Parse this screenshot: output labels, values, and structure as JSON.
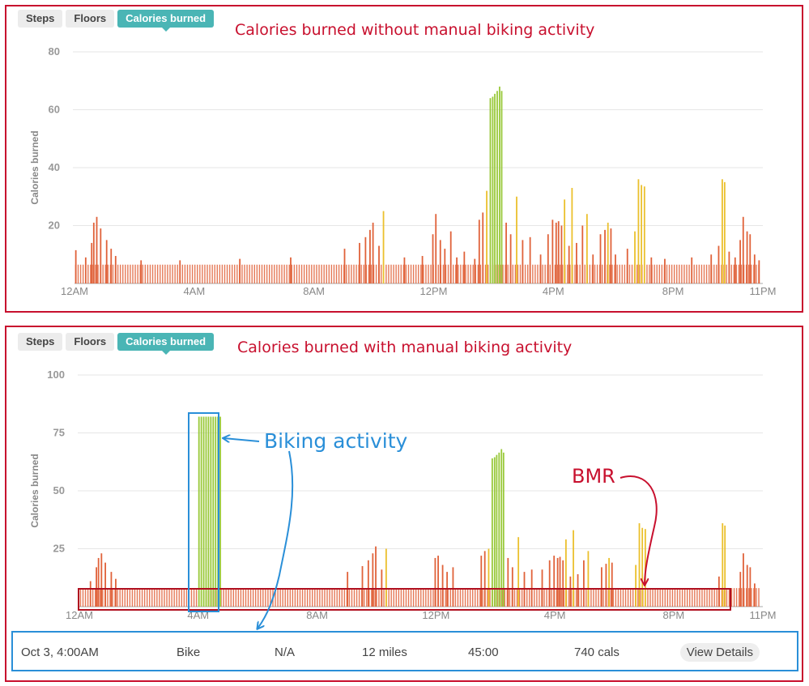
{
  "tabs": {
    "steps": "Steps",
    "floors": "Floors",
    "calories": "Calories burned"
  },
  "top": {
    "title": "Calories burned without manual biking activity"
  },
  "bottom": {
    "title": "Calories burned with manual biking activity"
  },
  "annotations": {
    "biking": "Biking activity",
    "bmr": "BMR"
  },
  "activity": {
    "date": "Oct 3, 4:00AM",
    "type": "Bike",
    "pace": "N/A",
    "distance": "12 miles",
    "duration": "45:00",
    "calories": "740 cals",
    "view_details": "View Details"
  },
  "colors": {
    "bar_orange": "#e0623a",
    "bar_yellow": "#ebc02d",
    "bar_green": "#99c93a",
    "accent": "#4ab5b5",
    "annotation_red": "#c8102e",
    "annotation_blue": "#2a8fd8"
  },
  "chart_data": [
    {
      "type": "bar",
      "title": "Calories burned without manual biking activity",
      "ylabel": "Calories burned",
      "ylim": [
        0,
        80
      ],
      "yticks": [
        20,
        40,
        60,
        80
      ],
      "xlim": [
        0,
        23
      ],
      "xticks": [
        {
          "h": 0,
          "label": "12AM"
        },
        {
          "h": 4,
          "label": "4AM"
        },
        {
          "h": 8,
          "label": "8AM"
        },
        {
          "h": 12,
          "label": "12PM"
        },
        {
          "h": 16,
          "label": "4PM"
        },
        {
          "h": 20,
          "label": "8PM"
        },
        {
          "h": 23,
          "label": "11PM"
        }
      ],
      "bmr": 6.5,
      "series": [
        {
          "name": "active",
          "points": [
            [
              0.02,
              11.5
            ],
            [
              0.35,
              9
            ],
            [
              0.55,
              14
            ],
            [
              0.62,
              21
            ],
            [
              0.72,
              23
            ],
            [
              0.85,
              19
            ],
            [
              1.05,
              15
            ],
            [
              1.2,
              12
            ],
            [
              1.35,
              9.5
            ],
            [
              2.2,
              8
            ],
            [
              3.5,
              8
            ],
            [
              5.5,
              8.5
            ],
            [
              7.2,
              9
            ],
            [
              9.0,
              12
            ],
            [
              9.5,
              14
            ],
            [
              9.7,
              16
            ],
            [
              9.85,
              18.5
            ],
            [
              9.95,
              21
            ],
            [
              10.15,
              13
            ],
            [
              10.3,
              25,
              "y"
            ],
            [
              11.0,
              9
            ],
            [
              11.6,
              9.5
            ],
            [
              11.95,
              17
            ],
            [
              12.05,
              24
            ],
            [
              12.2,
              15
            ],
            [
              12.35,
              12
            ],
            [
              12.55,
              18
            ],
            [
              12.75,
              9
            ],
            [
              13.0,
              11
            ],
            [
              13.35,
              8.5
            ],
            [
              13.5,
              22
            ],
            [
              13.62,
              24.5
            ],
            [
              13.75,
              32,
              "y"
            ],
            [
              13.87,
              64,
              "g"
            ],
            [
              13.95,
              64.5,
              "g"
            ],
            [
              14.02,
              65.5,
              "g"
            ],
            [
              14.1,
              66.5,
              "g"
            ],
            [
              14.18,
              68,
              "g"
            ],
            [
              14.25,
              66.5,
              "g"
            ],
            [
              14.4,
              21
            ],
            [
              14.55,
              17
            ],
            [
              14.75,
              30,
              "y"
            ],
            [
              14.95,
              15
            ],
            [
              15.2,
              16
            ],
            [
              15.55,
              10
            ],
            [
              15.8,
              17
            ],
            [
              15.95,
              22
            ],
            [
              16.07,
              21
            ],
            [
              16.15,
              21.5
            ],
            [
              16.25,
              20
            ],
            [
              16.35,
              29,
              "y"
            ],
            [
              16.5,
              13
            ],
            [
              16.6,
              33,
              "y"
            ],
            [
              16.75,
              14
            ],
            [
              16.95,
              20
            ],
            [
              17.1,
              24,
              "y"
            ],
            [
              17.3,
              10
            ],
            [
              17.55,
              17
            ],
            [
              17.7,
              18.5
            ],
            [
              17.8,
              21,
              "y"
            ],
            [
              17.9,
              19
            ],
            [
              18.05,
              10
            ],
            [
              18.45,
              12
            ],
            [
              18.7,
              18,
              "y"
            ],
            [
              18.82,
              36,
              "y"
            ],
            [
              18.92,
              34,
              "y"
            ],
            [
              19.02,
              33.5,
              "y"
            ],
            [
              19.25,
              9
            ],
            [
              19.7,
              8.5
            ],
            [
              20.6,
              9
            ],
            [
              21.25,
              10
            ],
            [
              21.5,
              13
            ],
            [
              21.62,
              36,
              "y"
            ],
            [
              21.7,
              35,
              "y"
            ],
            [
              21.85,
              11
            ],
            [
              22.05,
              9
            ],
            [
              22.22,
              15
            ],
            [
              22.32,
              23
            ],
            [
              22.45,
              18
            ],
            [
              22.55,
              17
            ],
            [
              22.7,
              10
            ],
            [
              22.85,
              8
            ]
          ]
        }
      ]
    },
    {
      "type": "bar",
      "title": "Calories burned with manual biking activity",
      "ylabel": "Calories burned",
      "ylim": [
        0,
        100
      ],
      "yticks": [
        25,
        50,
        75,
        100
      ],
      "xlim": [
        0,
        23
      ],
      "xticks": [
        {
          "h": 0,
          "label": "12AM"
        },
        {
          "h": 4,
          "label": "4AM"
        },
        {
          "h": 8,
          "label": "8AM"
        },
        {
          "h": 12,
          "label": "12PM"
        },
        {
          "h": 16,
          "label": "4PM"
        },
        {
          "h": 20,
          "label": "8PM"
        },
        {
          "h": 23,
          "label": "11PM"
        }
      ],
      "bmr": 8,
      "series": [
        {
          "name": "biking",
          "points": [
            [
              4.0,
              82,
              "g"
            ],
            [
              4.08,
              82,
              "g"
            ],
            [
              4.16,
              82,
              "g"
            ],
            [
              4.24,
              82,
              "g"
            ],
            [
              4.32,
              82,
              "g"
            ],
            [
              4.4,
              82,
              "g"
            ],
            [
              4.48,
              82,
              "g"
            ],
            [
              4.56,
              82,
              "g"
            ],
            [
              4.64,
              82,
              "g"
            ],
            [
              4.72,
              82,
              "g"
            ]
          ]
        },
        {
          "name": "active",
          "points": [
            [
              0.35,
              11
            ],
            [
              0.55,
              17
            ],
            [
              0.62,
              21
            ],
            [
              0.72,
              23
            ],
            [
              0.85,
              19
            ],
            [
              1.05,
              15
            ],
            [
              1.2,
              12
            ],
            [
              9.0,
              15
            ],
            [
              9.5,
              17.5
            ],
            [
              9.7,
              20
            ],
            [
              9.85,
              23
            ],
            [
              9.95,
              26
            ],
            [
              10.15,
              16
            ],
            [
              10.3,
              25,
              "y"
            ],
            [
              11.95,
              21
            ],
            [
              12.05,
              22
            ],
            [
              12.2,
              18
            ],
            [
              12.35,
              15
            ],
            [
              12.55,
              17
            ],
            [
              13.5,
              22
            ],
            [
              13.62,
              24
            ],
            [
              13.75,
              25,
              "y"
            ],
            [
              13.87,
              64,
              "g"
            ],
            [
              13.95,
              64.5,
              "g"
            ],
            [
              14.02,
              65.5,
              "g"
            ],
            [
              14.1,
              66.5,
              "g"
            ],
            [
              14.18,
              68,
              "g"
            ],
            [
              14.25,
              66.5,
              "g"
            ],
            [
              14.4,
              21
            ],
            [
              14.55,
              17
            ],
            [
              14.75,
              30,
              "y"
            ],
            [
              14.95,
              15
            ],
            [
              15.2,
              16
            ],
            [
              15.55,
              16
            ],
            [
              15.8,
              20
            ],
            [
              15.95,
              22
            ],
            [
              16.07,
              21
            ],
            [
              16.15,
              21.5
            ],
            [
              16.25,
              20
            ],
            [
              16.35,
              29,
              "y"
            ],
            [
              16.5,
              13
            ],
            [
              16.6,
              33,
              "y"
            ],
            [
              16.75,
              14
            ],
            [
              16.95,
              20
            ],
            [
              17.1,
              24,
              "y"
            ],
            [
              17.55,
              17
            ],
            [
              17.7,
              18.5
            ],
            [
              17.8,
              21,
              "y"
            ],
            [
              17.9,
              19
            ],
            [
              18.7,
              18,
              "y"
            ],
            [
              18.82,
              36,
              "y"
            ],
            [
              18.92,
              34,
              "y"
            ],
            [
              19.02,
              33.5,
              "y"
            ],
            [
              21.5,
              13
            ],
            [
              21.62,
              36,
              "y"
            ],
            [
              21.7,
              35,
              "y"
            ],
            [
              22.22,
              15
            ],
            [
              22.32,
              23
            ],
            [
              22.45,
              18
            ],
            [
              22.55,
              17
            ],
            [
              22.7,
              10
            ]
          ]
        }
      ]
    }
  ]
}
